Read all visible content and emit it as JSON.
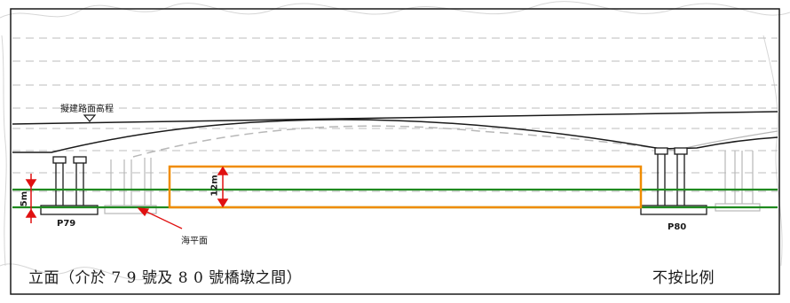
{
  "labels": {
    "road_level": "擬建路面高程",
    "sea_level": "海平面",
    "pier_left": "P79",
    "pier_right": "P80",
    "dim_12m": "12m",
    "dim_5m": "5m",
    "caption": "立面（介於 7 9 號及 8 0 號橋墩之間）",
    "scale_note": "不按比例"
  },
  "colors": {
    "frame": "#1a1a1a",
    "structure": "#222222",
    "ghost": "#b8b8b8",
    "green": "#1f8a1f",
    "orange": "#f08c00",
    "red": "#e01010",
    "background_sketch": "#d6d6d6"
  }
}
